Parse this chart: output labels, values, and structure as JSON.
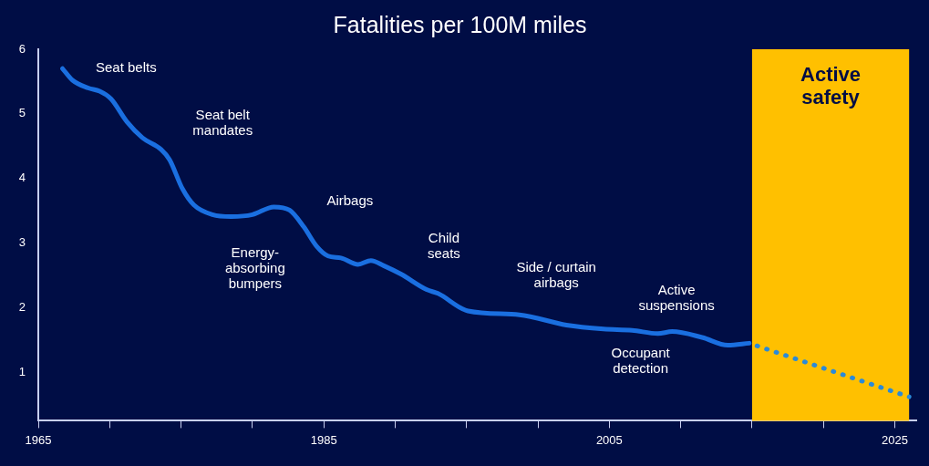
{
  "chart_data": {
    "type": "line",
    "title": "Fatalities per 100M miles",
    "xlim": [
      1965,
      2026.5
    ],
    "ylim": [
      0.25,
      6
    ],
    "xticks": [
      1965,
      {
        "value": 1970,
        "label": null
      },
      {
        "value": 1975,
        "label": null
      },
      {
        "value": 1980,
        "label": null
      },
      1985,
      {
        "value": 1990,
        "label": null
      },
      {
        "value": 1995,
        "label": null
      },
      {
        "value": 2000,
        "label": null
      },
      2005,
      {
        "value": 2010,
        "label": null
      },
      {
        "value": 2015,
        "label": null
      },
      {
        "value": 2020,
        "label": null
      },
      2025
    ],
    "yticks": [
      1,
      2,
      3,
      4,
      5,
      6
    ],
    "grid": false,
    "legend": false,
    "marker": "none",
    "series": [
      {
        "color": "#1a6fe0",
        "line_style": "solid",
        "x": [
          1966.7,
          1967.4,
          1968.5,
          1969.3,
          1970.1,
          1971.2,
          1972.3,
          1973.6,
          1974.2,
          1975.1,
          1975.9,
          1977.2,
          1978.5,
          1980.0,
          1981.5,
          1982.6,
          1983.6,
          1984.5,
          1985.3,
          1986.2,
          1987.4,
          1988.3,
          1989.2,
          1990.4,
          1992.2,
          1993.0,
          1995.1,
          1998.7,
          2002.0,
          2004.6,
          2006.6,
          2008.4,
          2009.4,
          2011.5,
          2013.3,
          2014.8
        ],
        "values": [
          5.7,
          5.52,
          5.4,
          5.35,
          5.23,
          4.88,
          4.63,
          4.45,
          4.29,
          3.84,
          3.59,
          3.44,
          3.41,
          3.44,
          3.56,
          3.51,
          3.25,
          2.95,
          2.8,
          2.77,
          2.67,
          2.73,
          2.65,
          2.52,
          2.28,
          2.22,
          1.95,
          1.89,
          1.73,
          1.67,
          1.65,
          1.6,
          1.63,
          1.54,
          1.42,
          1.45
        ]
      },
      {
        "color": "#2a8ad8",
        "line_style": "dotted",
        "x": [
          2014.8,
          2026
        ],
        "values": [
          1.45,
          0.62
        ]
      }
    ],
    "bands": [
      {
        "axis": "x",
        "from": 2015,
        "to": 2026,
        "label": "Active safety",
        "color": "#ffc000"
      }
    ],
    "annotations": [
      "Seat belts",
      "Seat belt\nmandates",
      "Energy-\nabsorbing\nbumpers",
      "Airbags",
      "Child\nseats",
      "Side / curtain\nairbags",
      "Active\nsuspensions",
      "Occupant\ndetection"
    ]
  }
}
